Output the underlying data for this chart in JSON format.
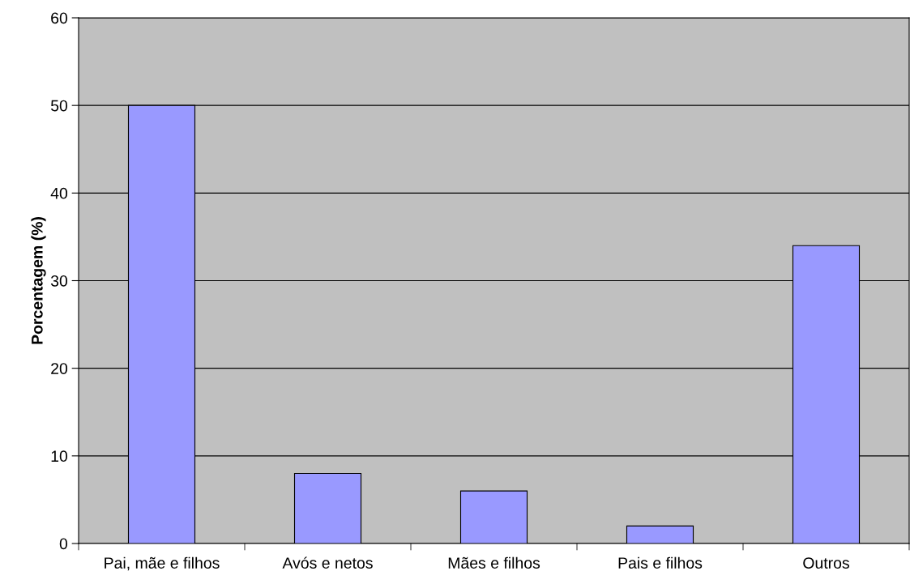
{
  "chart_data": {
    "type": "bar",
    "ylabel": "Porcentagem (%)",
    "categories": [
      "Pai, mãe e filhos",
      "Avós e netos",
      "Mães e filhos",
      "Pais e filhos",
      "Outros"
    ],
    "values": [
      50,
      8,
      6,
      2,
      34
    ],
    "color": "#9999ff",
    "ylim": [
      0,
      60
    ],
    "yticks": [
      0,
      10,
      20,
      30,
      40,
      50,
      60
    ],
    "grid": "y",
    "legend": false
  }
}
